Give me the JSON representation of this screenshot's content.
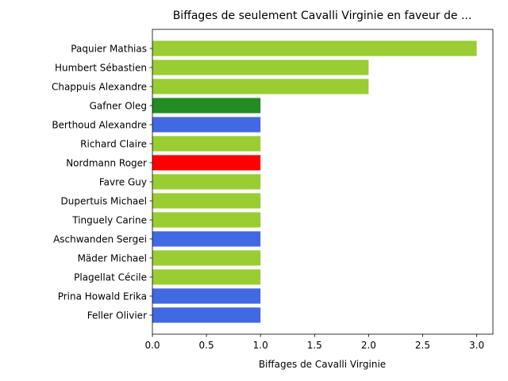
{
  "chart_data": {
    "type": "bar",
    "orientation": "horizontal",
    "title": "Biffages de seulement Cavalli Virginie en faveur de ...",
    "xlabel": "Biffages de Cavalli Virginie",
    "ylabel": "",
    "xlim": [
      0,
      3.15
    ],
    "xticks": [
      0.0,
      0.5,
      1.0,
      1.5,
      2.0,
      2.5,
      3.0
    ],
    "xtick_labels": [
      "0.0",
      "0.5",
      "1.0",
      "1.5",
      "2.0",
      "2.5",
      "3.0"
    ],
    "grid": false,
    "categories": [
      "Paquier Mathias",
      "Humbert Sébastien",
      "Chappuis Alexandre",
      "Gafner Oleg",
      "Berthoud Alexandre",
      "Richard Claire",
      "Nordmann Roger",
      "Favre Guy",
      "Dupertuis Michael",
      "Tinguely Carine",
      "Aschwanden Sergei",
      "Mäder Michael",
      "Plagellat Cécile",
      "Prina Howald Erika",
      "Feller Olivier"
    ],
    "values": [
      3,
      2,
      2,
      1,
      1,
      1,
      1,
      1,
      1,
      1,
      1,
      1,
      1,
      1,
      1
    ],
    "colors": [
      "#9acd32",
      "#9acd32",
      "#9acd32",
      "#228b22",
      "#4169e1",
      "#9acd32",
      "#ff0000",
      "#9acd32",
      "#9acd32",
      "#9acd32",
      "#4169e1",
      "#9acd32",
      "#9acd32",
      "#4169e1",
      "#4169e1"
    ]
  }
}
